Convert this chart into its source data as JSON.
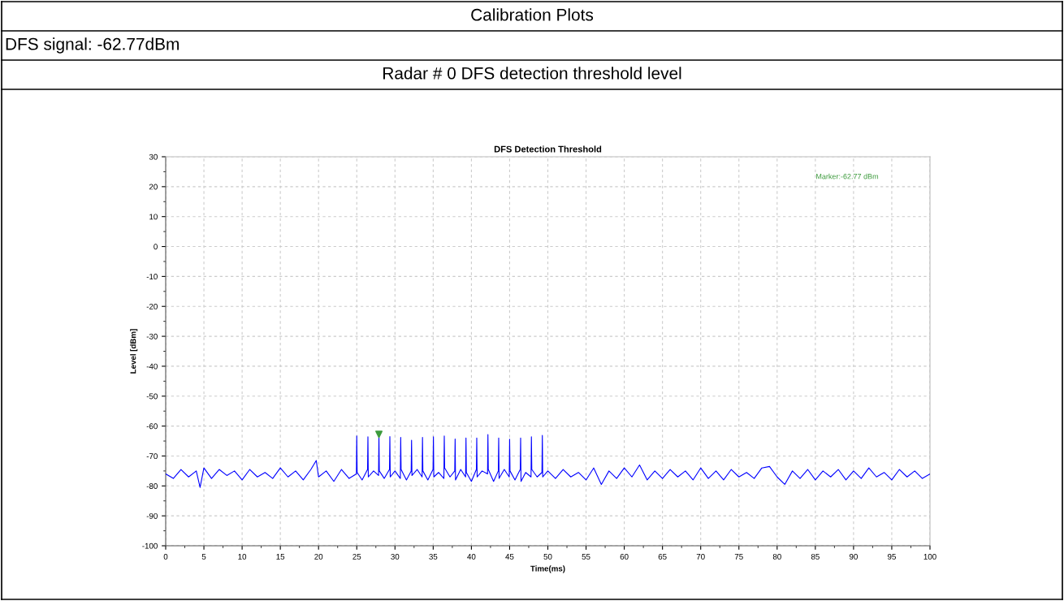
{
  "chart_data": {
    "type": "line",
    "title": "DFS Detection Threshold",
    "xlabel": "Time(ms)",
    "ylabel": "Level [dBm]",
    "annotations": [
      "Calibration Plots",
      "DFS signal: -62.77dBm",
      "Radar # 0 DFS detection threshold level",
      "Marker:-62.77 dBm"
    ],
    "xlim": [
      0,
      100
    ],
    "ylim": [
      -100,
      30
    ],
    "xticks": [
      0,
      5,
      10,
      15,
      20,
      25,
      30,
      35,
      40,
      45,
      50,
      55,
      60,
      65,
      70,
      75,
      80,
      85,
      90,
      95,
      100
    ],
    "yticks": [
      -100,
      -90,
      -80,
      -70,
      -60,
      -50,
      -40,
      -30,
      -20,
      -10,
      0,
      10,
      20,
      30
    ],
    "grid": true,
    "series": [
      {
        "color": "#0000ff",
        "x": [
          0,
          1,
          2,
          3,
          4,
          4.5,
          5,
          6,
          7,
          8,
          9,
          10,
          11,
          12,
          13,
          14,
          15,
          16,
          17,
          18,
          19,
          19.7,
          20,
          21,
          22,
          23,
          24,
          24.95,
          25,
          25.05,
          25.7,
          26.41,
          26.46,
          26.51,
          27.2,
          27.85,
          27.9,
          27.95,
          28.6,
          29.28,
          29.33,
          29.38,
          30.0,
          30.7,
          30.75,
          30.8,
          31.5,
          32.12,
          32.17,
          32.22,
          32.9,
          33.55,
          33.6,
          33.65,
          34.3,
          34.98,
          35.03,
          35.08,
          35.7,
          36.4,
          36.45,
          36.5,
          37.2,
          37.82,
          37.87,
          37.92,
          38.6,
          39.24,
          39.29,
          39.34,
          40.0,
          40.65,
          40.7,
          40.75,
          41.4,
          42.11,
          42.16,
          42.21,
          42.9,
          43.52,
          43.57,
          43.62,
          44.3,
          44.95,
          45.0,
          45.05,
          45.7,
          46.39,
          46.44,
          46.49,
          47.1,
          47.8,
          47.85,
          47.9,
          48.6,
          49.23,
          49.28,
          49.33,
          50,
          51,
          52,
          53,
          54,
          55,
          56,
          57,
          58,
          59,
          60,
          61,
          62,
          63,
          64,
          65,
          66,
          67,
          68,
          69,
          70,
          71,
          72,
          73,
          74,
          75,
          76,
          77,
          78,
          79,
          80,
          81,
          82,
          83,
          84,
          85,
          86,
          87,
          88,
          89,
          90,
          91,
          92,
          93,
          94,
          95,
          96,
          97,
          98,
          99,
          100
        ],
        "values": [
          -76,
          -77.5,
          -74.5,
          -77,
          -75,
          -80.5,
          -74,
          -77.5,
          -74.5,
          -76.5,
          -75,
          -78,
          -74.5,
          -77,
          -75.5,
          -77.5,
          -74,
          -77,
          -75,
          -78,
          -74.5,
          -71.5,
          -77,
          -75,
          -78.5,
          -74.5,
          -77.5,
          -76,
          -63.3,
          -75.5,
          -78,
          -74.5,
          -63.6,
          -77,
          -75,
          -76.5,
          -62.8,
          -75,
          -77.5,
          -74.5,
          -63.5,
          -77,
          -75,
          -77.5,
          -63.8,
          -74.5,
          -78,
          -75,
          -64.7,
          -76.5,
          -74.5,
          -77,
          -63.8,
          -75,
          -78,
          -74.5,
          -63.6,
          -77,
          -75.5,
          -77.5,
          -63.3,
          -74,
          -77,
          -75,
          -64.3,
          -78,
          -74.5,
          -77,
          -64.0,
          -75.5,
          -78.5,
          -74.5,
          -64.0,
          -77,
          -75,
          -76,
          -62.8,
          -74.5,
          -78.5,
          -75,
          -64.0,
          -77.5,
          -74.5,
          -77,
          -64.4,
          -75,
          -78,
          -74.5,
          -64.0,
          -78.5,
          -75.5,
          -77,
          -63.6,
          -74.5,
          -77,
          -75.5,
          -63.1,
          -77,
          -75,
          -77.5,
          -74.5,
          -77,
          -75.5,
          -78,
          -74,
          -79.5,
          -75,
          -77.5,
          -74,
          -77,
          -73,
          -78,
          -75,
          -77.5,
          -74.5,
          -77,
          -75,
          -78,
          -74,
          -77.5,
          -75,
          -78,
          -74.5,
          -77,
          -75.5,
          -77.5,
          -74,
          -73.5,
          -77,
          -79.5,
          -75,
          -77.5,
          -74.5,
          -78,
          -75,
          -77,
          -74.5,
          -78,
          -75,
          -77.5,
          -74,
          -77,
          -75.5,
          -78,
          -74.5,
          -77,
          -75,
          -77.5,
          -76
        ]
      },
      {
        "type": "scatter",
        "color": "#3c9a3c",
        "marker": "triangle",
        "x": [
          27.9
        ],
        "values": [
          -62.77
        ]
      }
    ]
  }
}
